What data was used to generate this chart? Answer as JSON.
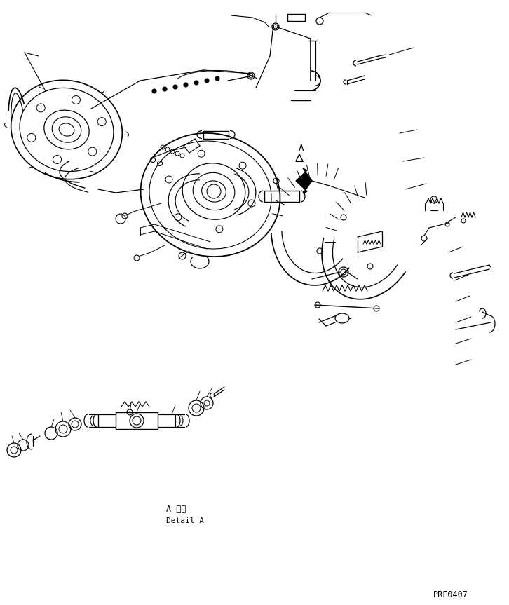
{
  "bg_color": "#ffffff",
  "line_color": "#000000",
  "fig_width": 7.26,
  "fig_height": 8.63,
  "dpi": 100,
  "label_detail_a_jp": "A 詳細",
  "label_detail_a_en": "Detail A",
  "label_code": "PRF0407"
}
